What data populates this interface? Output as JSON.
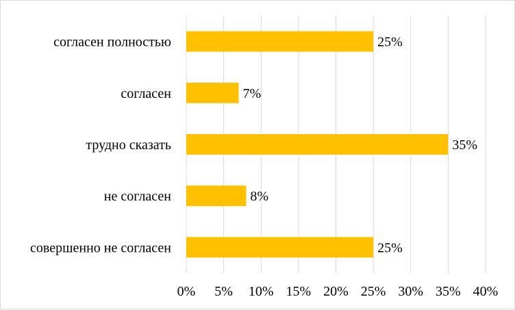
{
  "chart_data": {
    "type": "bar",
    "orientation": "horizontal",
    "categories": [
      "согласен полностью",
      "согласен",
      "трудно сказать",
      "не согласен",
      "совершенно не согласен"
    ],
    "values": [
      25,
      7,
      35,
      8,
      25
    ],
    "data_labels": [
      "25%",
      "7%",
      "35%",
      "8%",
      "25%"
    ],
    "xlim": [
      0,
      40
    ],
    "x_ticks": [
      0,
      5,
      10,
      15,
      20,
      25,
      30,
      35,
      40
    ],
    "x_tick_labels": [
      "0%",
      "5%",
      "10%",
      "15%",
      "20%",
      "25%",
      "30%",
      "35%",
      "40%"
    ],
    "grid": true,
    "legend": "none",
    "title": "",
    "xlabel": "",
    "ylabel": "",
    "bar_color": "#FFC000"
  }
}
